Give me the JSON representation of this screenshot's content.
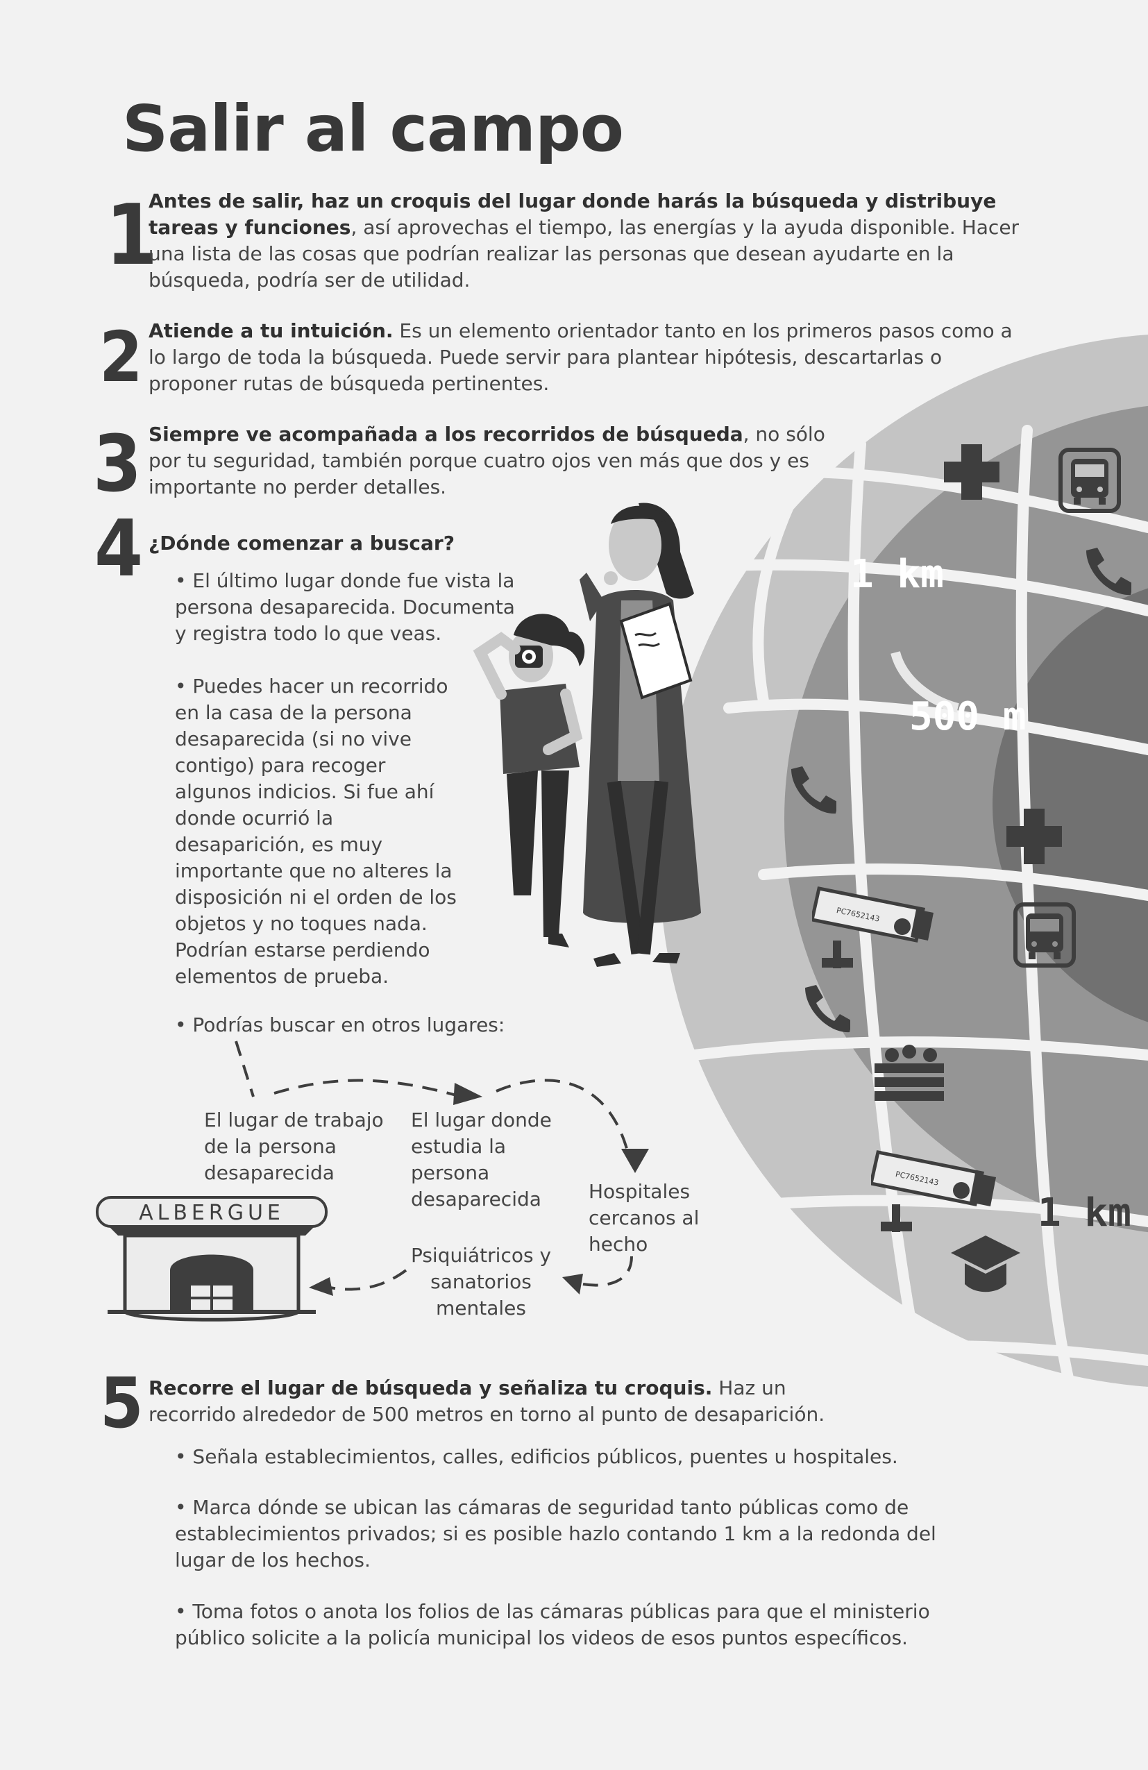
{
  "title": "Salir al campo",
  "steps": [
    {
      "number": "1",
      "bold": "Antes de salir, haz un croquis del lugar donde harás la búsqueda y distribuye tareas y funciones",
      "text": ", así aprovechas el tiempo, las energías y la ayuda disponible. Hacer una lista de las cosas que podrían realizar las personas que desean ayudarte en la búsqueda, podría ser de utilidad."
    },
    {
      "number": "2",
      "bold": "Atiende a tu intuición.",
      "text": " Es un elemento orientador tanto en los primeros pasos como a lo largo de toda la búsqueda. Puede servir para plantear hipótesis, descartarlas o proponer rutas de búsqueda pertinentes."
    },
    {
      "number": "3",
      "bold": "Siempre ve acompañada a los recorridos de búsqueda",
      "text": ", no sólo por tu seguridad, también porque cuatro ojos ven más que dos y es importante no perder detalles."
    },
    {
      "number": "4",
      "bold": "¿Dónde comenzar a buscar?",
      "text": ""
    },
    {
      "number": "5",
      "bold": "Recorre el lugar de búsqueda y señaliza tu croquis.",
      "text": " Haz un recorrido alrededor de 500 metros en torno al punto de desaparición."
    }
  ],
  "step4_bullets": [
    "• El último lugar donde fue vista la persona desaparecida. Documenta y registra todo lo que veas.",
    "• Puedes hacer un recorrido en la casa de la persona desaparecida (si no vive contigo) para recoger algunos indicios. Si fue ahí donde ocurrió la desaparición, es muy importante que no alteres la disposición ni el orden de los objetos y no toques nada. Podrían estarse perdiendo elementos de prueba.",
    "• Podrías buscar en otros lugares:"
  ],
  "places": {
    "trabajo": "El lugar de trabajo de la persona desaparecida",
    "estudio": "El lugar donde estudia la persona desaparecida",
    "hospitales": "Hospitales cercanos al hecho",
    "psiquiatricos": "Psiquiátricos y sanatorios mentales",
    "albergue_sign": "ALBERGUE"
  },
  "step5_bullets": [
    "• Señala establecimientos, calles, edificios públicos, puentes u hospitales.",
    "• Marca dónde se ubican las cámaras de seguridad tanto públicas como de establecimientos privados; si es posible hazlo contando 1 km a la redonda del lugar de los hechos.",
    "• Toma fotos o anota los folios de las cámaras públicas para que el ministerio público solicite a la policía municipal los videos de esos puntos específicos."
  ],
  "map": {
    "label_1km_top": "1 km",
    "label_500m": "500 m",
    "label_1km_bottom": "1 km",
    "camera_folio": "PC7652143",
    "icons": [
      "plus-icon",
      "bus-icon",
      "phone-icon",
      "camera-icon",
      "market-icon",
      "graduation-cap-icon"
    ]
  },
  "colors": {
    "text": "#3a3a3a",
    "background": "#f2f2f2",
    "map_outer": "#bdbdbd",
    "map_mid": "#8f8f8f",
    "map_inner": "#6b6b6b"
  }
}
